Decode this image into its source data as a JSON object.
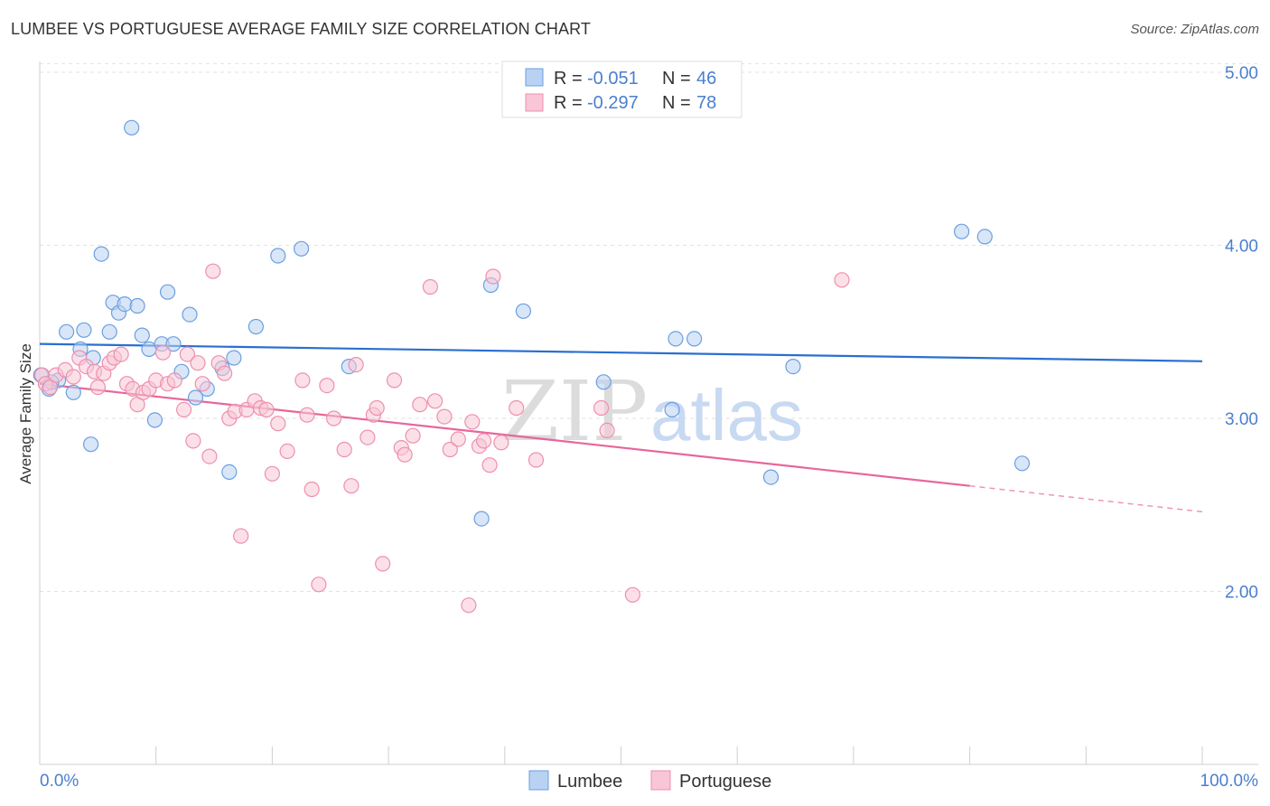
{
  "header": {
    "title": "LUMBEE VS PORTUGUESE AVERAGE FAMILY SIZE CORRELATION CHART",
    "source": "Source: ZipAtlas.com"
  },
  "watermark": {
    "part1": "ZIP",
    "part2": "atlas"
  },
  "stats_legend": {
    "rows": [
      {
        "r_label": "R = ",
        "r_value": "-0.051",
        "n_label": "N = ",
        "n_value": "46",
        "color": "#aac8f0"
      },
      {
        "r_label": "R = ",
        "r_value": "-0.297",
        "n_label": "N = ",
        "n_value": "78",
        "color": "#f6b8cc"
      }
    ]
  },
  "chart_data": {
    "type": "scatter",
    "title": "LUMBEE VS PORTUGUESE AVERAGE FAMILY SIZE CORRELATION CHART",
    "xlabel": "",
    "ylabel": "Average Family Size",
    "xlim": [
      0,
      100
    ],
    "ylim": [
      1.0,
      5.2
    ],
    "x_tick_labels": [
      "0.0%",
      "100.0%"
    ],
    "y_ticks": [
      2.0,
      3.0,
      4.0,
      5.0
    ],
    "y_tick_labels": [
      "2.00",
      "3.00",
      "4.00",
      "5.00"
    ],
    "grid": true,
    "legend_position": "bottom-center",
    "series": [
      {
        "name": "Lumbee",
        "color": "#6a9fe0",
        "fill": "#b9d2f3",
        "trend": {
          "x": [
            0,
            100
          ],
          "y": [
            3.43,
            3.33
          ],
          "color": "#2a6fd0"
        },
        "points": [
          [
            0.1,
            3.25
          ],
          [
            0.8,
            3.17
          ],
          [
            1.6,
            3.22
          ],
          [
            2.3,
            3.5
          ],
          [
            2.9,
            3.15
          ],
          [
            3.5,
            3.4
          ],
          [
            3.8,
            3.51
          ],
          [
            4.4,
            2.85
          ],
          [
            4.6,
            3.35
          ],
          [
            5.3,
            3.95
          ],
          [
            6.0,
            3.5
          ],
          [
            6.3,
            3.67
          ],
          [
            6.8,
            3.61
          ],
          [
            7.3,
            3.66
          ],
          [
            7.9,
            4.68
          ],
          [
            8.4,
            3.65
          ],
          [
            8.8,
            3.48
          ],
          [
            9.4,
            3.4
          ],
          [
            9.9,
            2.99
          ],
          [
            10.5,
            3.43
          ],
          [
            11.0,
            3.73
          ],
          [
            11.5,
            3.43
          ],
          [
            12.2,
            3.27
          ],
          [
            12.9,
            3.6
          ],
          [
            13.4,
            3.12
          ],
          [
            14.4,
            3.17
          ],
          [
            15.7,
            3.29
          ],
          [
            16.3,
            2.69
          ],
          [
            16.7,
            3.35
          ],
          [
            18.6,
            3.53
          ],
          [
            20.5,
            3.94
          ],
          [
            22.5,
            3.98
          ],
          [
            26.6,
            3.3
          ],
          [
            38.0,
            2.42
          ],
          [
            38.8,
            3.77
          ],
          [
            41.6,
            3.62
          ],
          [
            48.5,
            3.21
          ],
          [
            54.4,
            3.05
          ],
          [
            54.7,
            3.46
          ],
          [
            56.3,
            3.46
          ],
          [
            62.9,
            2.66
          ],
          [
            64.8,
            3.3
          ],
          [
            79.3,
            4.08
          ],
          [
            81.3,
            4.05
          ],
          [
            84.5,
            2.74
          ],
          [
            1.0,
            3.21
          ]
        ]
      },
      {
        "name": "Portuguese",
        "color": "#ee8fae",
        "fill": "#f8c6d6",
        "trend": {
          "x": [
            0,
            80
          ],
          "y": [
            3.2,
            2.61
          ],
          "dashed_to": [
            100,
            2.46
          ],
          "color": "#e8669a"
        },
        "points": [
          [
            0.2,
            3.25
          ],
          [
            0.5,
            3.2
          ],
          [
            0.9,
            3.18
          ],
          [
            1.4,
            3.25
          ],
          [
            2.2,
            3.28
          ],
          [
            2.9,
            3.24
          ],
          [
            3.4,
            3.35
          ],
          [
            4.0,
            3.3
          ],
          [
            4.7,
            3.27
          ],
          [
            5.0,
            3.18
          ],
          [
            5.5,
            3.26
          ],
          [
            6.0,
            3.32
          ],
          [
            6.4,
            3.35
          ],
          [
            7.0,
            3.37
          ],
          [
            7.5,
            3.2
          ],
          [
            8.0,
            3.17
          ],
          [
            8.4,
            3.08
          ],
          [
            8.9,
            3.15
          ],
          [
            9.4,
            3.17
          ],
          [
            10.0,
            3.22
          ],
          [
            10.6,
            3.38
          ],
          [
            11.0,
            3.2
          ],
          [
            11.6,
            3.22
          ],
          [
            12.4,
            3.05
          ],
          [
            12.7,
            3.37
          ],
          [
            13.2,
            2.87
          ],
          [
            13.6,
            3.32
          ],
          [
            14.0,
            3.2
          ],
          [
            14.6,
            2.78
          ],
          [
            14.9,
            3.85
          ],
          [
            15.4,
            3.32
          ],
          [
            15.9,
            3.26
          ],
          [
            16.3,
            3.0
          ],
          [
            16.8,
            3.04
          ],
          [
            17.3,
            2.32
          ],
          [
            17.8,
            3.05
          ],
          [
            18.5,
            3.1
          ],
          [
            19.0,
            3.06
          ],
          [
            19.5,
            3.05
          ],
          [
            20.0,
            2.68
          ],
          [
            20.5,
            2.97
          ],
          [
            21.3,
            2.81
          ],
          [
            22.6,
            3.22
          ],
          [
            23.0,
            3.02
          ],
          [
            23.4,
            2.59
          ],
          [
            24.0,
            2.04
          ],
          [
            24.7,
            3.19
          ],
          [
            25.3,
            3.0
          ],
          [
            26.2,
            2.82
          ],
          [
            26.8,
            2.61
          ],
          [
            27.2,
            3.31
          ],
          [
            28.2,
            2.89
          ],
          [
            28.7,
            3.02
          ],
          [
            29.0,
            3.06
          ],
          [
            29.5,
            2.16
          ],
          [
            30.5,
            3.22
          ],
          [
            31.1,
            2.83
          ],
          [
            31.4,
            2.79
          ],
          [
            32.1,
            2.9
          ],
          [
            32.7,
            3.08
          ],
          [
            33.6,
            3.76
          ],
          [
            34.0,
            3.1
          ],
          [
            34.8,
            3.01
          ],
          [
            35.3,
            2.82
          ],
          [
            36.0,
            2.88
          ],
          [
            36.9,
            1.92
          ],
          [
            37.2,
            2.98
          ],
          [
            37.8,
            2.84
          ],
          [
            38.2,
            2.87
          ],
          [
            38.7,
            2.73
          ],
          [
            39.0,
            3.82
          ],
          [
            39.7,
            2.86
          ],
          [
            41.0,
            3.06
          ],
          [
            42.7,
            2.76
          ],
          [
            48.3,
            3.06
          ],
          [
            48.8,
            2.93
          ],
          [
            51.0,
            1.98
          ],
          [
            69.0,
            3.8
          ]
        ]
      }
    ]
  },
  "bottom_legend": {
    "items": [
      {
        "label": "Lumbee",
        "color": "#b9d2f3",
        "stroke": "#6a9fe0"
      },
      {
        "label": "Portuguese",
        "color": "#f8c6d6",
        "stroke": "#ee8fae"
      }
    ]
  }
}
